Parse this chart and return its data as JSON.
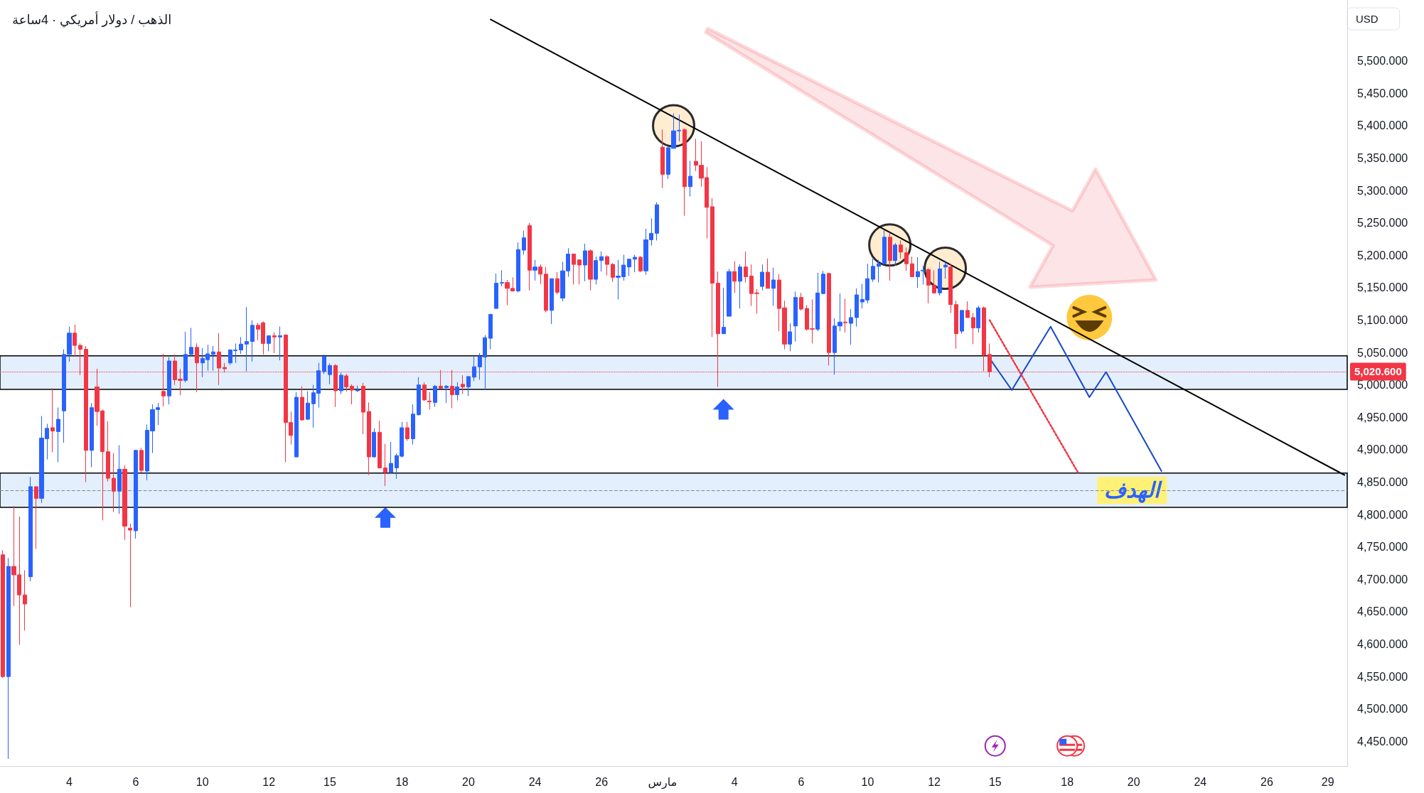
{
  "chart_data": {
    "type": "candlestick",
    "title": "الذهب / دولار أمريكي · 4ساعة",
    "ylabel": "USD",
    "categories": [
      null,
      null,
      null,
      null,
      null,
      null,
      null,
      null,
      null,
      null,
      null,
      null,
      "4",
      null,
      null,
      null,
      null,
      null,
      null,
      null,
      null,
      null,
      null,
      null,
      "6",
      null,
      null,
      null,
      null,
      null,
      null,
      null,
      null,
      null,
      null,
      null,
      "10",
      null,
      null,
      null,
      null,
      null,
      null,
      null,
      null,
      null,
      null,
      null,
      "12",
      null,
      null,
      null,
      null,
      null,
      null,
      null,
      null,
      null,
      null,
      "15",
      null,
      null,
      null,
      null,
      null,
      null,
      null,
      null,
      null,
      null,
      null,
      null,
      "18",
      null,
      null,
      null,
      null,
      null,
      null,
      null,
      null,
      null,
      null,
      null,
      "20",
      null,
      null,
      null,
      null,
      null,
      null,
      null,
      null,
      null,
      null,
      null,
      "24",
      null,
      null,
      null,
      null,
      null,
      null,
      null,
      null,
      null,
      null,
      null,
      "26",
      null,
      null,
      null,
      null,
      null,
      null,
      null,
      null,
      null,
      null,
      "مارس",
      null,
      null,
      null,
      null,
      null,
      null,
      null,
      null,
      null,
      null,
      null,
      null,
      "4",
      null,
      null,
      null,
      null,
      null,
      null,
      null,
      null,
      null,
      null,
      null,
      "6",
      null,
      null,
      null,
      null,
      null,
      null,
      null,
      null,
      null,
      null,
      null,
      "10",
      null,
      null,
      null,
      null,
      null,
      null,
      null,
      null,
      null,
      null,
      null,
      "12",
      null,
      null,
      null,
      null,
      null,
      null,
      null,
      null,
      null,
      null,
      "15",
      null,
      null,
      null,
      null,
      null,
      null,
      null,
      null,
      null,
      null,
      null,
      null,
      "18",
      null,
      null,
      null,
      null,
      null,
      null,
      null,
      null,
      null,
      null,
      null,
      "20",
      null,
      null,
      null,
      null,
      null,
      null,
      null,
      null,
      null,
      null,
      null,
      "24",
      null,
      null,
      null,
      null,
      null,
      null,
      null,
      null,
      null,
      null,
      null,
      "26",
      null,
      null,
      null,
      null,
      null,
      null,
      null,
      null,
      null,
      null,
      "29",
      null,
      null,
      null
    ],
    "ohlc": [
      [
        4738,
        4745,
        4548,
        4550
      ],
      [
        4550,
        4733,
        4423,
        4720
      ],
      [
        4720,
        4813,
        4659,
        4707
      ],
      [
        4707,
        4797,
        4599,
        4676
      ],
      [
        4676,
        4714,
        4621,
        4662
      ],
      [
        4704,
        4858,
        4697,
        4843
      ],
      [
        4843,
        4843,
        4747,
        4825
      ],
      [
        4825,
        4952,
        4818,
        4918
      ],
      [
        4917,
        4940,
        4885,
        4933
      ],
      [
        4934,
        4995,
        4896,
        4929
      ],
      [
        4928,
        4965,
        4881,
        4947
      ],
      [
        4960,
        5055,
        4911,
        5047
      ],
      [
        5047,
        5090,
        5036,
        5080
      ],
      [
        5080,
        5093,
        5044,
        5061
      ],
      [
        5061,
        5064,
        5015,
        5055
      ],
      [
        5055,
        5060,
        4850,
        4899
      ],
      [
        4899,
        4972,
        4873,
        4965
      ],
      [
        4997,
        5025,
        4937,
        4959
      ],
      [
        4960,
        4962,
        4791,
        4897
      ],
      [
        4897,
        4944,
        4851,
        4856
      ],
      [
        4856,
        4895,
        4804,
        4836
      ],
      [
        4836,
        4907,
        4801,
        4870
      ],
      [
        4870,
        4876,
        4761,
        4782
      ],
      [
        4779,
        4786,
        4657,
        4776
      ],
      [
        4775,
        4900,
        4763,
        4899
      ],
      [
        4899,
        4903,
        4865,
        4868
      ],
      [
        4867,
        4939,
        4853,
        4930
      ],
      [
        4929,
        4970,
        4895,
        4962
      ],
      [
        4962,
        4972,
        4938,
        4965
      ],
      [
        4990,
        5048,
        4967,
        4983
      ],
      [
        4983,
        5043,
        4970,
        5037
      ],
      [
        5037,
        5047,
        5000,
        5008
      ],
      [
        5009,
        5025,
        4984,
        5007
      ],
      [
        5007,
        5082,
        5004,
        5047
      ],
      [
        5047,
        5088,
        5045,
        5058
      ],
      [
        5058,
        5064,
        4989,
        5034
      ],
      [
        5034,
        5057,
        5012,
        5041
      ],
      [
        5039,
        5062,
        5022,
        5048
      ],
      [
        5047,
        5060,
        5022,
        5051
      ],
      [
        5051,
        5080,
        5000,
        5026
      ],
      [
        5027,
        5034,
        5019,
        5025
      ],
      [
        5034,
        5055,
        5031,
        5054
      ],
      [
        5053,
        5064,
        5034,
        5054
      ],
      [
        5054,
        5074,
        5048,
        5063
      ],
      [
        5063,
        5120,
        5021,
        5067
      ],
      [
        5067,
        5100,
        5036,
        5092
      ],
      [
        5092,
        5096,
        5069,
        5086
      ],
      [
        5096,
        5098,
        5047,
        5064
      ],
      [
        5064,
        5076,
        5052,
        5076
      ],
      [
        5076,
        5081,
        5049,
        5074
      ],
      [
        5074,
        5090,
        5038,
        5076
      ],
      [
        5077,
        5078,
        4881,
        4942
      ],
      [
        4942,
        4959,
        4908,
        4922
      ],
      [
        4889,
        4989,
        4888,
        4981
      ],
      [
        4981,
        4998,
        4945,
        4946
      ],
      [
        4947,
        4990,
        4946,
        4972
      ],
      [
        4971,
        5000,
        4934,
        4988
      ],
      [
        4987,
        5034,
        4965,
        5022
      ],
      [
        5021,
        5047,
        5017,
        5044
      ],
      [
        5016,
        5033,
        5001,
        5030
      ],
      [
        5030,
        5032,
        4966,
        4991
      ],
      [
        4991,
        5019,
        4986,
        5015
      ],
      [
        5014,
        5017,
        4990,
        4997
      ],
      [
        4998,
        5001,
        4970,
        4992
      ],
      [
        4991,
        4999,
        4989,
        4992
      ],
      [
        4998,
        5003,
        4924,
        4958
      ],
      [
        4959,
        4973,
        4861,
        4889
      ],
      [
        4889,
        4933,
        4888,
        4927
      ],
      [
        4927,
        4945,
        4871,
        4872
      ],
      [
        4872,
        4909,
        4844,
        4865
      ],
      [
        4865,
        4912,
        4864,
        4879
      ],
      [
        4872,
        4894,
        4855,
        4891
      ],
      [
        4890,
        4943,
        4888,
        4934
      ],
      [
        4934,
        4943,
        4914,
        4917
      ],
      [
        4917,
        4970,
        4908,
        4955
      ],
      [
        4954,
        5012,
        4953,
        5000
      ],
      [
        5000,
        5004,
        4975,
        4977
      ],
      [
        4975,
        4989,
        4962,
        4974
      ],
      [
        4973,
        5000,
        4966,
        4998
      ],
      [
        4998,
        5023,
        4994,
        4995
      ],
      [
        4996,
        5000,
        4972,
        4998
      ],
      [
        4998,
        5023,
        4964,
        4985
      ],
      [
        4985,
        5004,
        4976,
        4997
      ],
      [
        5001,
        5015,
        4986,
        4997
      ],
      [
        4997,
        5013,
        4983,
        5013
      ],
      [
        5012,
        5044,
        5006,
        5028
      ],
      [
        5028,
        5049,
        5008,
        5044
      ],
      [
        5043,
        5077,
        4992,
        5073
      ],
      [
        5072,
        5109,
        5055,
        5109
      ],
      [
        5118,
        5172,
        5118,
        5157
      ],
      [
        5157,
        5177,
        5152,
        5158
      ],
      [
        5158,
        5162,
        5123,
        5149
      ],
      [
        5149,
        5166,
        5144,
        5145
      ],
      [
        5145,
        5220,
        5143,
        5209
      ],
      [
        5208,
        5238,
        5201,
        5227
      ],
      [
        5246,
        5250,
        5146,
        5177
      ],
      [
        5177,
        5193,
        5161,
        5182
      ],
      [
        5182,
        5186,
        5156,
        5171
      ],
      [
        5171,
        5182,
        5112,
        5115
      ],
      [
        5115,
        5164,
        5094,
        5164
      ],
      [
        5164,
        5174,
        5140,
        5143
      ],
      [
        5134,
        5190,
        5129,
        5176
      ],
      [
        5176,
        5211,
        5167,
        5202
      ],
      [
        5202,
        5202,
        5155,
        5186
      ],
      [
        5193,
        5193,
        5155,
        5185
      ],
      [
        5185,
        5218,
        5160,
        5207
      ],
      [
        5207,
        5209,
        5146,
        5163
      ],
      [
        5163,
        5198,
        5155,
        5192
      ],
      [
        5192,
        5206,
        5175,
        5198
      ],
      [
        5198,
        5200,
        5169,
        5186
      ],
      [
        5186,
        5188,
        5159,
        5166
      ],
      [
        5166,
        5193,
        5132,
        5168
      ],
      [
        5167,
        5201,
        5161,
        5185
      ],
      [
        5182,
        5195,
        5168,
        5194
      ],
      [
        5194,
        5201,
        5174,
        5197
      ],
      [
        5197,
        5199,
        5174,
        5176
      ],
      [
        5176,
        5241,
        5170,
        5224
      ],
      [
        5224,
        5257,
        5215,
        5234
      ],
      [
        5234,
        5282,
        5223,
        5278
      ],
      [
        5367,
        5394,
        5304,
        5325
      ],
      [
        5325,
        5368,
        5318,
        5366
      ],
      [
        5365,
        5419,
        5365,
        5392
      ],
      [
        5392,
        5417,
        5376,
        5393
      ],
      [
        5394,
        5396,
        5261,
        5306
      ],
      [
        5306,
        5346,
        5291,
        5322
      ],
      [
        5345,
        5380,
        5330,
        5339
      ],
      [
        5339,
        5376,
        5306,
        5319
      ],
      [
        5320,
        5336,
        5226,
        5274
      ],
      [
        5275,
        5288,
        5074,
        5157
      ],
      [
        5157,
        5175,
        4997,
        5079
      ],
      [
        5079,
        5150,
        5079,
        5089
      ],
      [
        5106,
        5179,
        5106,
        5175
      ],
      [
        5175,
        5191,
        5142,
        5160
      ],
      [
        5160,
        5186,
        5118,
        5182
      ],
      [
        5182,
        5206,
        5158,
        5167
      ],
      [
        5168,
        5186,
        5122,
        5141
      ],
      [
        5142,
        5148,
        5110,
        5141
      ],
      [
        5152,
        5186,
        5146,
        5174
      ],
      [
        5174,
        5195,
        5149,
        5149
      ],
      [
        5149,
        5181,
        5122,
        5162
      ],
      [
        5162,
        5171,
        5083,
        5118
      ],
      [
        5119,
        5130,
        5055,
        5063
      ],
      [
        5063,
        5095,
        5052,
        5082
      ],
      [
        5091,
        5144,
        5067,
        5135
      ],
      [
        5135,
        5142,
        5115,
        5117
      ],
      [
        5118,
        5123,
        5084,
        5086
      ],
      [
        5087,
        5132,
        5064,
        5086
      ],
      [
        5086,
        5173,
        5083,
        5142
      ],
      [
        5141,
        5176,
        5140,
        5171
      ],
      [
        5172,
        5172,
        5030,
        5050
      ],
      [
        5050,
        5103,
        5016,
        5091
      ],
      [
        5091,
        5141,
        5083,
        5097
      ],
      [
        5097,
        5133,
        5081,
        5096
      ],
      [
        5095,
        5117,
        5062,
        5104
      ],
      [
        5104,
        5149,
        5090,
        5139
      ],
      [
        5128,
        5156,
        5118,
        5132
      ],
      [
        5131,
        5187,
        5126,
        5164
      ],
      [
        5163,
        5195,
        5159,
        5183
      ],
      [
        5183,
        5193,
        5158,
        5187
      ],
      [
        5187,
        5239,
        5186,
        5228
      ],
      [
        5228,
        5235,
        5161,
        5192
      ],
      [
        5192,
        5219,
        5184,
        5216
      ],
      [
        5216,
        5223,
        5195,
        5205
      ],
      [
        5204,
        5212,
        5176,
        5187
      ],
      [
        5187,
        5198,
        5167,
        5167
      ],
      [
        5167,
        5197,
        5150,
        5175
      ],
      [
        5176,
        5184,
        5155,
        5177
      ],
      [
        5178,
        5180,
        5126,
        5154
      ],
      [
        5154,
        5177,
        5141,
        5142
      ],
      [
        5142,
        5190,
        5138,
        5179
      ],
      [
        5182,
        5192,
        5164,
        5185
      ],
      [
        5182,
        5186,
        5111,
        5124
      ],
      [
        5124,
        5130,
        5056,
        5079
      ],
      [
        5083,
        5115,
        5079,
        5115
      ],
      [
        5115,
        5129,
        5104,
        5104
      ],
      [
        5104,
        5111,
        5063,
        5088
      ],
      [
        5088,
        5122,
        5081,
        5119
      ],
      [
        5119,
        5121,
        5021,
        5046
      ],
      [
        5047,
        5064,
        5012,
        5020.6
      ],
      null,
      null,
      null,
      null,
      null,
      null,
      null,
      null,
      null,
      null,
      null,
      null,
      null,
      null,
      null,
      null,
      null,
      null,
      null,
      null,
      null,
      null,
      null,
      null,
      null,
      null,
      null,
      null,
      null,
      null,
      null,
      null,
      null,
      null,
      null,
      null,
      null,
      null,
      null,
      null,
      null,
      null,
      null,
      null,
      null,
      null,
      null,
      null,
      null,
      null,
      null,
      null,
      null,
      null,
      null,
      null,
      null,
      null,
      null,
      null,
      null,
      null,
      null,
      null
    ],
    "colors": [
      "#f23645",
      "#2962ff",
      "#f23645",
      "#f23645",
      "#f23645",
      "#2962ff",
      "#f23645",
      "#2962ff",
      "#2962ff",
      "#f23645",
      "#2962ff",
      "#2962ff",
      "#2962ff",
      "#f23645",
      "#f23645",
      "#f23645",
      "#2962ff",
      "#f23645",
      "#f23645",
      "#f23645",
      "#f23645",
      "#2962ff",
      "#f23645",
      "#f23645",
      "#2962ff",
      "#f23645",
      "#2962ff",
      "#2962ff",
      "#2962ff",
      "#f23645",
      "#2962ff",
      "#f23645",
      "#f23645",
      "#2962ff",
      "#2962ff",
      "#f23645",
      "#2962ff",
      "#2962ff",
      "#2962ff",
      "#f23645",
      "#f23645",
      "#2962ff",
      "#2962ff",
      "#2962ff",
      "#2962ff",
      "#2962ff",
      "#f23645",
      "#f23645",
      "#2962ff",
      "#f23645",
      "#2962ff",
      "#f23645",
      "#f23645",
      "#2962ff",
      "#f23645",
      "#2962ff",
      "#2962ff",
      "#2962ff",
      "#2962ff",
      "#2962ff",
      "#f23645",
      "#2962ff",
      "#f23645",
      "#f23645",
      "#2962ff",
      "#f23645",
      "#f23645",
      "#2962ff",
      "#f23645",
      "#f23645",
      "#2962ff",
      "#2962ff",
      "#2962ff",
      "#f23645",
      "#2962ff",
      "#2962ff",
      "#f23645",
      "#f23645",
      "#2962ff",
      "#f23645",
      "#2962ff",
      "#f23645",
      "#2962ff",
      "#f23645",
      "#2962ff",
      "#2962ff",
      "#2962ff",
      "#2962ff",
      "#2962ff",
      "#2962ff",
      "#2962ff",
      "#f23645",
      "#f23645",
      "#2962ff",
      "#2962ff",
      "#f23645",
      "#2962ff",
      "#f23645",
      "#f23645",
      "#2962ff",
      "#f23645",
      "#2962ff",
      "#2962ff",
      "#f23645",
      "#f23645",
      "#2962ff",
      "#f23645",
      "#2962ff",
      "#2962ff",
      "#f23645",
      "#f23645",
      "#2962ff",
      "#2962ff",
      "#2962ff",
      "#2962ff",
      "#f23645",
      "#2962ff",
      "#2962ff",
      "#2962ff",
      "#f23645",
      "#2962ff",
      "#2962ff",
      "#2962ff",
      "#f23645",
      "#2962ff",
      "#f23645",
      "#f23645",
      "#f23645",
      "#f23645",
      "#f23645",
      "#2962ff",
      "#2962ff",
      "#f23645",
      "#2962ff",
      "#f23645",
      "#f23645",
      "#f23645",
      "#2962ff",
      "#f23645",
      "#2962ff",
      "#f23645",
      "#f23645",
      "#2962ff",
      "#2962ff",
      "#f23645",
      "#f23645",
      "#f23645",
      "#2962ff",
      "#2962ff",
      "#f23645",
      "#2962ff",
      "#2962ff",
      "#f23645",
      "#2962ff",
      "#2962ff",
      "#2962ff",
      "#2962ff",
      "#2962ff",
      "#2962ff",
      "#2962ff",
      "#f23645",
      "#2962ff",
      "#f23645",
      "#f23645",
      "#f23645",
      "#2962ff",
      "#2962ff",
      "#f23645",
      "#f23645",
      "#2962ff",
      "#2962ff",
      "#f23645",
      "#f23645",
      "#2962ff",
      "#f23645",
      "#f23645",
      "#2962ff",
      "#f23645",
      "#f23645",
      null,
      null,
      null,
      null,
      null,
      null,
      null,
      null,
      null,
      null,
      null,
      null,
      null,
      null,
      null,
      null,
      null,
      null,
      null,
      null,
      null,
      null,
      null,
      null,
      null,
      null,
      null,
      null,
      null,
      null,
      null,
      null,
      null,
      null,
      null,
      null,
      null,
      null,
      null,
      null,
      null,
      null,
      null,
      null,
      null,
      null,
      null,
      null,
      null,
      null,
      null,
      null,
      null,
      null,
      null,
      null,
      null,
      null,
      null,
      null,
      null,
      null,
      null,
      null
    ],
    "series": [
      {
        "type": "line",
        "color": "#000000",
        "line_style": "solid",
        "values": [
          null,
          null,
          null,
          null,
          null,
          null,
          null,
          null,
          null,
          null,
          null,
          null,
          null,
          null,
          null,
          null,
          null,
          null,
          null,
          null,
          null,
          null,
          null,
          null,
          null,
          null,
          null,
          null,
          null,
          null,
          null,
          null,
          null,
          null,
          null,
          null,
          null,
          null,
          null,
          null,
          null,
          null,
          null,
          null,
          null,
          null,
          null,
          null,
          null,
          null,
          null,
          null,
          null,
          null,
          null,
          null,
          null,
          null,
          null,
          null,
          null,
          null,
          null,
          null,
          null,
          null,
          null,
          null,
          null,
          null,
          null,
          null,
          null,
          null,
          null,
          null,
          null,
          null,
          null,
          null,
          null,
          null,
          null,
          null,
          null,
          null,
          null,
          null,
          5564,
          null,
          null,
          null,
          null,
          null,
          null,
          null,
          null,
          null,
          null,
          null,
          null,
          null,
          null,
          null,
          null,
          null,
          null,
          null,
          null,
          null,
          null,
          null,
          null,
          null,
          null,
          null,
          null,
          null,
          null,
          null,
          null,
          null,
          null,
          null,
          null,
          null,
          null,
          null,
          null,
          null,
          null,
          null,
          null,
          null,
          null,
          null,
          null,
          null,
          null,
          null,
          null,
          null,
          null,
          null,
          null,
          null,
          null,
          null,
          null,
          null,
          null,
          null,
          null,
          null,
          null,
          null,
          null,
          null,
          null,
          null,
          null,
          null,
          null,
          null,
          null,
          null,
          null,
          null,
          null,
          null,
          null,
          null,
          null,
          null,
          null,
          null,
          null,
          null,
          null,
          null,
          null,
          null,
          null,
          null,
          null,
          null,
          null,
          null,
          null,
          null,
          null,
          null,
          null,
          null,
          null,
          null,
          null,
          null,
          null,
          null,
          null,
          null,
          null,
          null,
          null,
          null,
          null,
          null,
          null,
          null,
          null,
          null,
          null,
          null,
          null,
          null,
          null,
          null,
          null,
          null,
          null,
          null,
          null,
          null,
          null,
          null,
          null,
          null,
          null,
          null,
          null,
          null,
          null,
          null,
          null,
          null,
          null,
          null,
          null,
          null,
          null,
          null,
          4861
        ]
      },
      {
        "type": "line",
        "color": "#1848cc",
        "line_style": "solid",
        "values": [
          null,
          null,
          null,
          null,
          null,
          null,
          null,
          null,
          null,
          null,
          null,
          null,
          null,
          null,
          null,
          null,
          null,
          null,
          null,
          null,
          null,
          null,
          null,
          null,
          null,
          null,
          null,
          null,
          null,
          null,
          null,
          null,
          null,
          null,
          null,
          null,
          null,
          null,
          null,
          null,
          null,
          null,
          null,
          null,
          null,
          null,
          null,
          null,
          null,
          null,
          null,
          null,
          null,
          null,
          null,
          null,
          null,
          null,
          null,
          null,
          null,
          null,
          null,
          null,
          null,
          null,
          null,
          null,
          null,
          null,
          null,
          null,
          null,
          null,
          null,
          null,
          null,
          null,
          null,
          null,
          null,
          null,
          null,
          null,
          null,
          null,
          null,
          null,
          null,
          null,
          null,
          null,
          null,
          null,
          null,
          null,
          null,
          null,
          null,
          null,
          null,
          null,
          null,
          null,
          null,
          null,
          null,
          null,
          null,
          null,
          null,
          null,
          null,
          null,
          null,
          null,
          null,
          null,
          null,
          null,
          null,
          null,
          null,
          null,
          null,
          null,
          null,
          null,
          null,
          null,
          null,
          null,
          null,
          null,
          null,
          null,
          null,
          null,
          null,
          null,
          null,
          null,
          null,
          null,
          null,
          null,
          null,
          null,
          null,
          null,
          null,
          null,
          null,
          null,
          null,
          null,
          null,
          null,
          null,
          null,
          null,
          null,
          null,
          null,
          null,
          null,
          null,
          null,
          null,
          null,
          null,
          null,
          null,
          null,
          null,
          null,
          null,
          null,
          5041,
          null,
          null,
          null,
          4992,
          null,
          null,
          null,
          null,
          null,
          null,
          5090,
          null,
          null,
          null,
          null,
          null,
          null,
          4981,
          null,
          null,
          5020,
          null,
          null,
          null,
          null,
          null,
          null,
          null,
          null,
          null,
          4867,
          null,
          null,
          null,
          null,
          null,
          null,
          null,
          null,
          null,
          null,
          null,
          null,
          null,
          null,
          null,
          null,
          null,
          null,
          null,
          null,
          null,
          null,
          null,
          null,
          null,
          null,
          null,
          null,
          null,
          null,
          null,
          null,
          null
        ]
      },
      {
        "type": "line",
        "color": "#f23645",
        "line_style": "dotted",
        "values": [
          null,
          null,
          null,
          null,
          null,
          null,
          null,
          null,
          null,
          null,
          null,
          null,
          null,
          null,
          null,
          null,
          null,
          null,
          null,
          null,
          null,
          null,
          null,
          null,
          null,
          null,
          null,
          null,
          null,
          null,
          null,
          null,
          null,
          null,
          null,
          null,
          null,
          null,
          null,
          null,
          null,
          null,
          null,
          null,
          null,
          null,
          null,
          null,
          null,
          null,
          null,
          null,
          null,
          null,
          null,
          null,
          null,
          null,
          null,
          null,
          null,
          null,
          null,
          null,
          null,
          null,
          null,
          null,
          null,
          null,
          null,
          null,
          null,
          null,
          null,
          null,
          null,
          null,
          null,
          null,
          null,
          null,
          null,
          null,
          null,
          null,
          null,
          null,
          null,
          null,
          null,
          null,
          null,
          null,
          null,
          null,
          null,
          null,
          null,
          null,
          null,
          null,
          null,
          null,
          null,
          null,
          null,
          null,
          null,
          null,
          null,
          null,
          null,
          null,
          null,
          null,
          null,
          null,
          null,
          null,
          null,
          null,
          null,
          null,
          null,
          null,
          null,
          null,
          null,
          null,
          null,
          null,
          null,
          null,
          null,
          null,
          null,
          null,
          null,
          null,
          null,
          null,
          null,
          null,
          null,
          null,
          null,
          null,
          null,
          null,
          null,
          null,
          null,
          null,
          null,
          null,
          null,
          null,
          null,
          null,
          null,
          null,
          null,
          null,
          null,
          null,
          null,
          null,
          null,
          null,
          null,
          null,
          null,
          null,
          null,
          null,
          null,
          null,
          5100,
          null,
          null,
          null,
          null,
          null,
          null,
          null,
          null,
          null,
          null,
          null,
          null,
          null,
          null,
          null,
          4864,
          null,
          null,
          null,
          null,
          null,
          null,
          null,
          null,
          null,
          null,
          null,
          null,
          null,
          null,
          null,
          null,
          null,
          null,
          null,
          null,
          null,
          null,
          null,
          null,
          null,
          null,
          null,
          null,
          null,
          null,
          null,
          null,
          null,
          null,
          null,
          null,
          null,
          null,
          null,
          null,
          null,
          null,
          null,
          null,
          null,
          null,
          null,
          null
        ]
      }
    ],
    "ylim": [
      4412,
      5594
    ],
    "yticks": [
      {
        "value": 4450,
        "label": "4,450.000"
      },
      {
        "value": 4500,
        "label": "4,500.000"
      },
      {
        "value": 4550,
        "label": "4,550.000"
      },
      {
        "value": 4600,
        "label": "4,600.000"
      },
      {
        "value": 4650,
        "label": "4,650.000"
      },
      {
        "value": 4700,
        "label": "4,700.000"
      },
      {
        "value": 4750,
        "label": "4,750.000"
      },
      {
        "value": 4800,
        "label": "4,800.000"
      },
      {
        "value": 4850,
        "label": "4,850.000"
      },
      {
        "value": 4900,
        "label": "4,900.000"
      },
      {
        "value": 4950,
        "label": "4,950.000"
      },
      {
        "value": 5000,
        "label": "5,000.000"
      },
      {
        "value": 5050,
        "label": "5,050.000"
      },
      {
        "value": 5100,
        "label": "5,100.000"
      },
      {
        "value": 5150,
        "label": "5,150.000"
      },
      {
        "value": 5200,
        "label": "5,200.000"
      },
      {
        "value": 5250,
        "label": "5,250.000"
      },
      {
        "value": 5300,
        "label": "5,300.000"
      },
      {
        "value": 5350,
        "label": "5,350.000"
      },
      {
        "value": 5400,
        "label": "5,400.000"
      },
      {
        "value": 5450,
        "label": "5,450.000"
      },
      {
        "value": 5500,
        "label": "5,500.000"
      }
    ],
    "ref_lines": [
      {
        "axis": "y",
        "value": 5020.6,
        "label": "5,020.600",
        "color": "#f23645",
        "line_style": "dotted"
      },
      {
        "axis": "y",
        "value": 4837,
        "color": "#888888",
        "line_style": "dashed"
      }
    ],
    "bands": [
      {
        "axis": "y",
        "from": 4993,
        "to": 5045,
        "color": "#e3effd"
      },
      {
        "axis": "y",
        "from": 4811,
        "to": 4864,
        "label": "الهدف",
        "color": "#e3effd"
      }
    ],
    "marker": "none",
    "grid": false
  }
}
